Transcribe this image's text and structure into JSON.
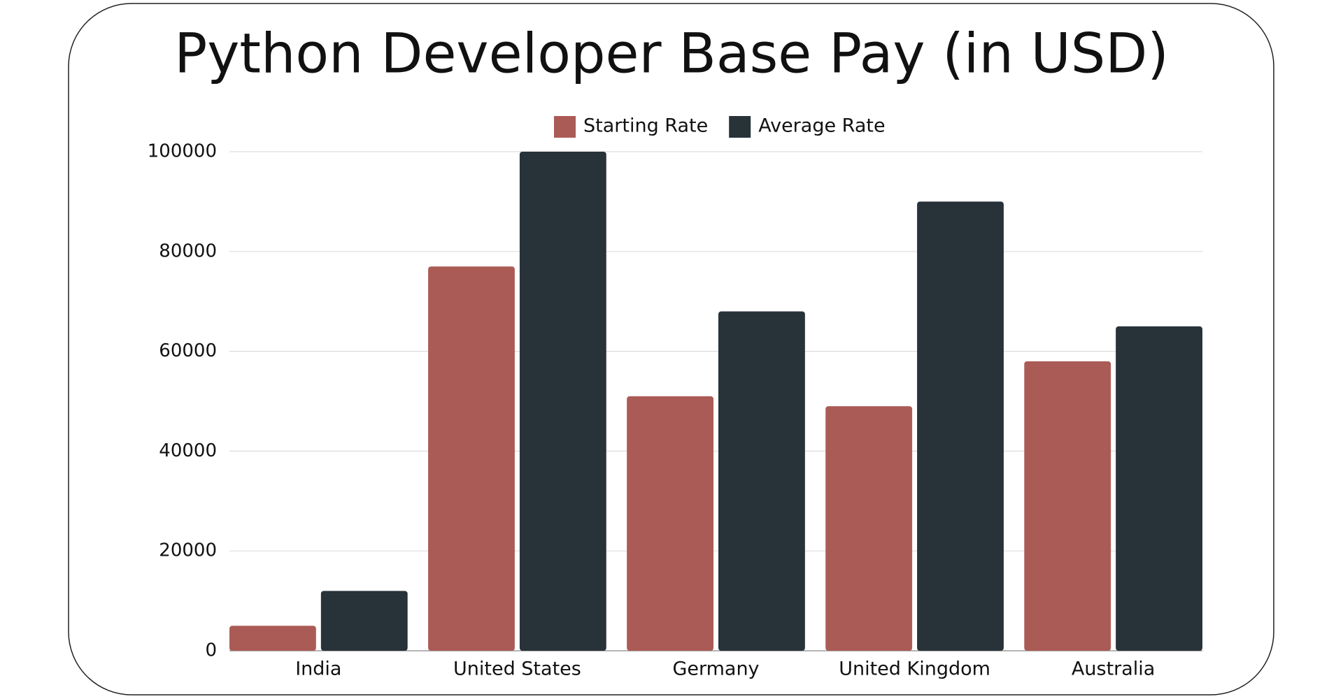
{
  "chart_data": {
    "type": "bar",
    "title": "Python Developer Base Pay (in USD)",
    "categories": [
      "India",
      "United States",
      "Germany",
      "United Kingdom",
      "Australia"
    ],
    "series": [
      {
        "name": "Starting Rate",
        "color": "#ab5b56",
        "values": [
          5000,
          77000,
          51000,
          49000,
          58000
        ]
      },
      {
        "name": "Average Rate",
        "color": "#273239",
        "values": [
          12000,
          100000,
          68000,
          90000,
          65000
        ]
      }
    ],
    "ylim": [
      0,
      100000
    ],
    "yticks": [
      0,
      20000,
      40000,
      60000,
      80000,
      100000
    ],
    "grid": true,
    "legend": "top"
  }
}
